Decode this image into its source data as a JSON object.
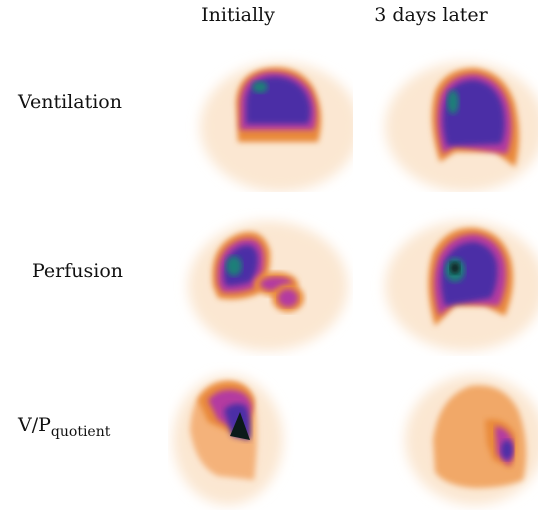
{
  "columns": [
    "Initially",
    "3 days later"
  ],
  "rows": [
    {
      "label": "Ventilation",
      "sub": ""
    },
    {
      "label": "Perfusion",
      "sub": ""
    },
    {
      "label": "V/P",
      "sub": "quotient"
    }
  ],
  "colors": {
    "halo": "#fbe7d2",
    "orange": "#e98a3a",
    "magenta": "#b43aa0",
    "purple": "#4b2fa6",
    "teal": "#1f7f78",
    "dark": "#0b1a1a"
  }
}
